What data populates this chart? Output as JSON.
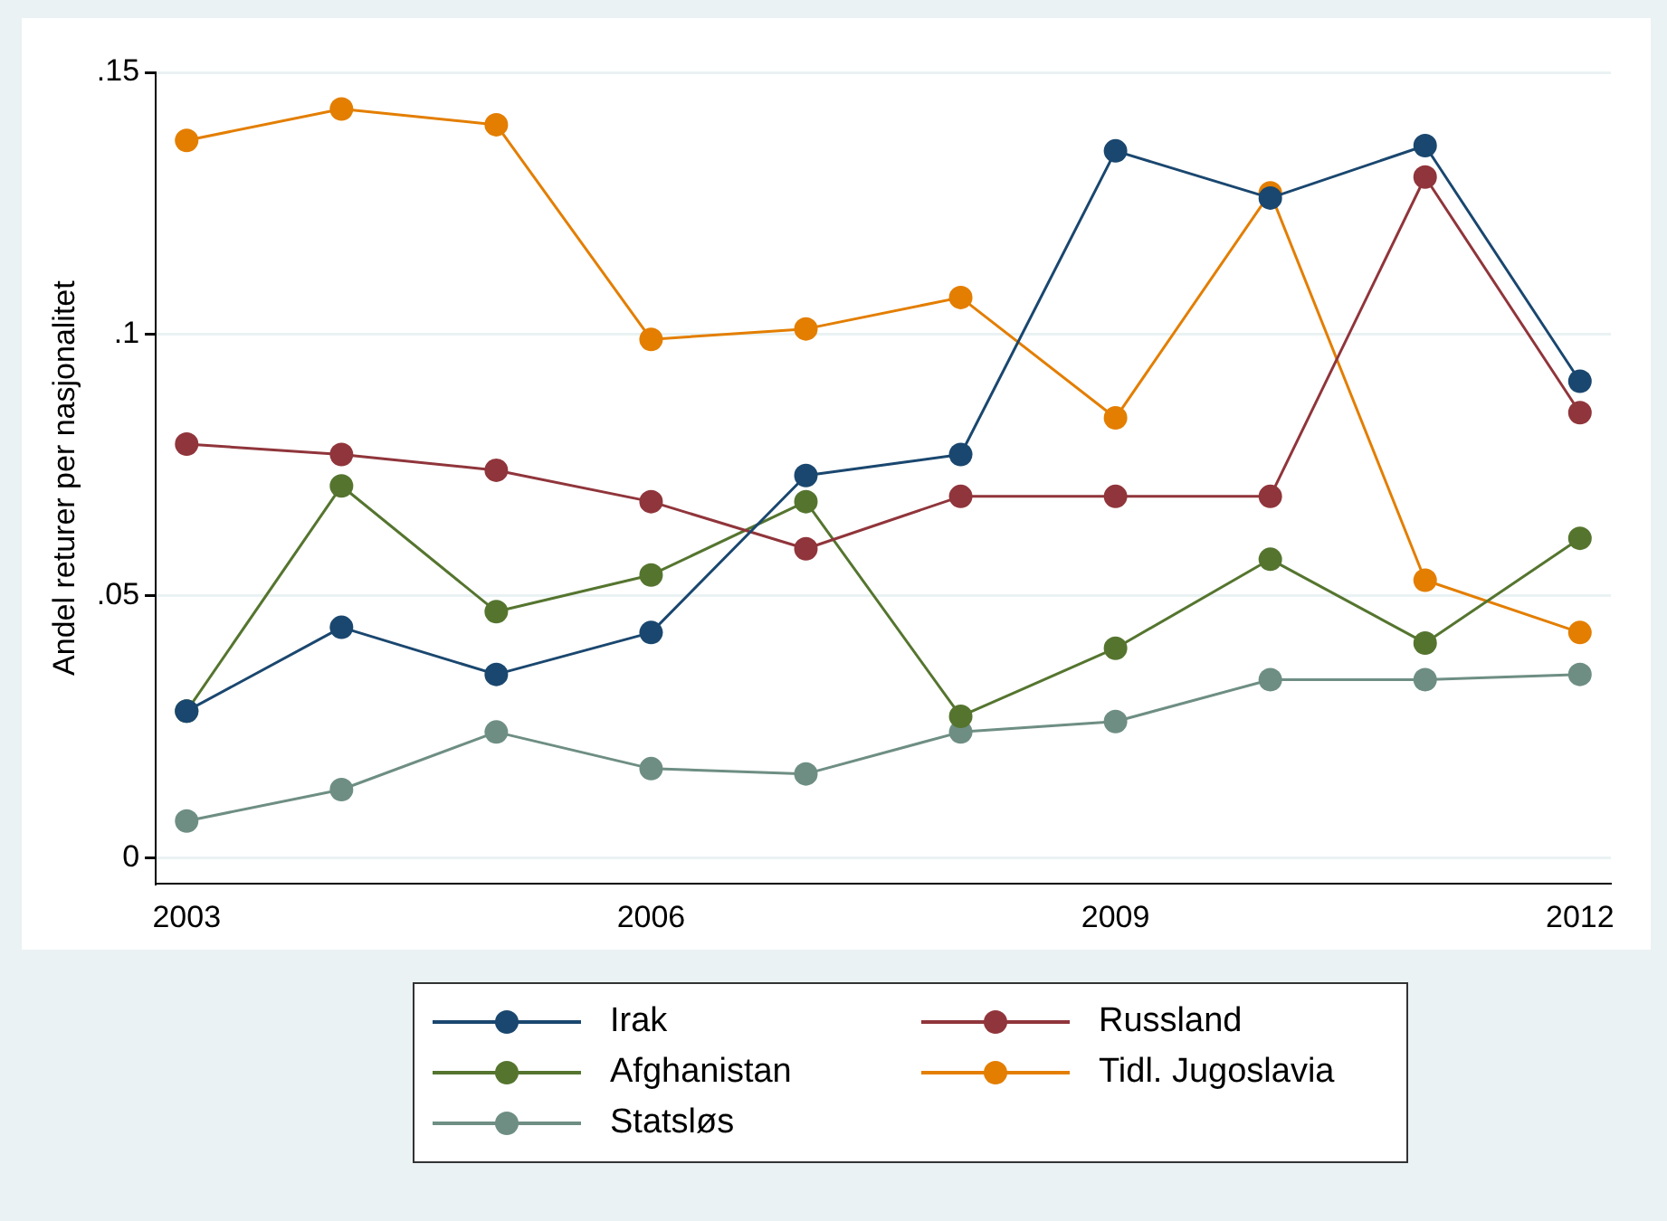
{
  "chart_data": {
    "type": "line",
    "ylabel": "Andel returer per nasjonalitet",
    "x": [
      2003,
      2004,
      2005,
      2006,
      2007,
      2008,
      2009,
      2010,
      2011,
      2012
    ],
    "series": [
      {
        "name": "Irak",
        "color": "#1a476f",
        "values": [
          0.028,
          0.044,
          0.035,
          0.043,
          0.073,
          0.077,
          0.135,
          0.126,
          0.136,
          0.091
        ]
      },
      {
        "name": "Russland",
        "color": "#90353b",
        "values": [
          0.079,
          0.077,
          0.074,
          0.068,
          0.059,
          0.069,
          0.069,
          0.069,
          0.13,
          0.085
        ]
      },
      {
        "name": "Afghanistan",
        "color": "#55752f",
        "values": [
          0.028,
          0.071,
          0.047,
          0.054,
          0.068,
          0.027,
          0.04,
          0.057,
          0.041,
          0.061
        ]
      },
      {
        "name": "Tidl. Jugoslavia",
        "color": "#e37e00",
        "values": [
          0.137,
          0.143,
          0.14,
          0.099,
          0.101,
          0.107,
          0.084,
          0.127,
          0.053,
          0.043
        ]
      },
      {
        "name": "Statsløs",
        "color": "#6e8e84",
        "values": [
          0.007,
          0.013,
          0.024,
          0.017,
          0.016,
          0.024,
          0.026,
          0.034,
          0.034,
          0.035
        ]
      }
    ],
    "xlim": [
      2002.8,
      2012.2
    ],
    "xticks": [
      2003,
      2006,
      2009,
      2012
    ],
    "ylim": [
      -0.005,
      0.15
    ],
    "yticks": [
      0,
      {
        "value": 0.05,
        "label": ".05"
      },
      {
        "value": 0.1,
        "label": ".1"
      },
      {
        "value": 0.15,
        "label": ".15"
      }
    ],
    "grid": "y",
    "legend": "bottom",
    "marker": "circle",
    "line_style": "solid"
  }
}
